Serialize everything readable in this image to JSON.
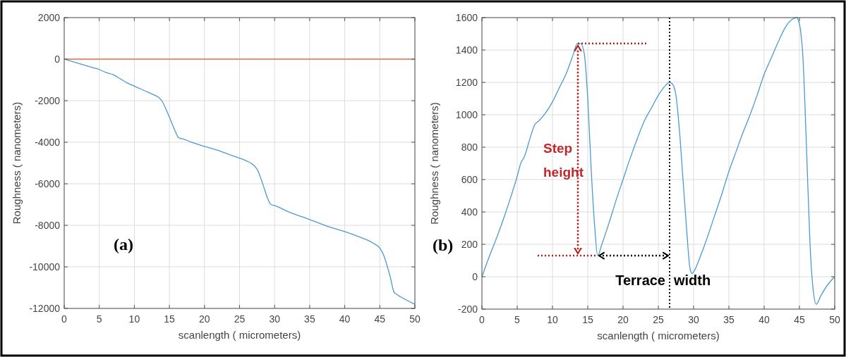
{
  "chart_data": [
    {
      "type": "line",
      "xlabel": "scanlength ( micrometers)",
      "ylabel": "Roughness ( nanometers)",
      "xlim": [
        0,
        50
      ],
      "xticks": [
        0,
        5,
        10,
        15,
        20,
        25,
        30,
        35,
        40,
        45,
        50
      ],
      "ylim": [
        -12000,
        2000
      ],
      "yticks": [
        -12000,
        -10000,
        -8000,
        -6000,
        -4000,
        -2000,
        0,
        2000
      ],
      "grid": true,
      "annotations": [
        "(a)"
      ],
      "ref_lines": [
        {
          "axis": "y",
          "value": 0,
          "color": "#e8704a"
        }
      ],
      "series": [
        {
          "color": "#4d9ad0",
          "x": [
            0,
            2,
            4,
            5,
            6,
            7,
            8,
            9,
            10,
            11,
            12,
            13,
            13.5,
            14,
            14.5,
            15,
            15.5,
            16,
            16.3,
            17,
            18,
            20,
            22,
            24,
            26,
            27,
            27.5,
            28,
            28.5,
            29,
            29.5,
            30,
            32,
            34,
            36,
            38,
            40,
            42,
            44,
            45,
            45.5,
            46,
            46.5,
            47,
            47.3,
            48,
            50
          ],
          "values": [
            0,
            -200,
            -400,
            -500,
            -650,
            -750,
            -950,
            -1150,
            -1300,
            -1450,
            -1600,
            -1750,
            -1850,
            -2050,
            -2400,
            -2800,
            -3200,
            -3600,
            -3780,
            -3850,
            -3980,
            -4200,
            -4400,
            -4650,
            -4900,
            -5100,
            -5300,
            -5700,
            -6200,
            -6700,
            -7000,
            -7050,
            -7350,
            -7600,
            -7850,
            -8100,
            -8300,
            -8550,
            -8850,
            -9100,
            -9400,
            -9900,
            -10500,
            -11200,
            -11300,
            -11450,
            -11800
          ]
        }
      ]
    },
    {
      "type": "line",
      "xlabel": "scanlength ( micrometers)",
      "ylabel": "Roughness ( nanometers)",
      "xlim": [
        0,
        50
      ],
      "xticks": [
        0,
        5,
        10,
        15,
        20,
        25,
        30,
        35,
        40,
        45,
        50
      ],
      "ylim": [
        -200,
        1600
      ],
      "yticks": [
        -200,
        0,
        200,
        400,
        600,
        800,
        1000,
        1200,
        1400,
        1600
      ],
      "grid": true,
      "annotations": [
        "(b)",
        {
          "text": "Step height",
          "x": 13.5,
          "y": 790
        },
        {
          "text": "Terrace width",
          "x": 26.6,
          "y": -20
        }
      ],
      "ref_lines": [
        {
          "axis": "x",
          "value": 26.6,
          "color": "#000000",
          "line_style": "dotted"
        }
      ],
      "series": [
        {
          "color": "#4d9ad0",
          "x": [
            0,
            1,
            2,
            3,
            4,
            5,
            5.5,
            6,
            7,
            7.5,
            8,
            9,
            10,
            11,
            12,
            13,
            13.5,
            14,
            14.5,
            15,
            15.5,
            16,
            16.4,
            17,
            18,
            19,
            20,
            21,
            22,
            23,
            24,
            25,
            26,
            26.6,
            27,
            27.5,
            28,
            28.5,
            29,
            29.5,
            29.8,
            30,
            31,
            32,
            33,
            34,
            35,
            36,
            37,
            38,
            39,
            40,
            41,
            42,
            43,
            44,
            44.6,
            45,
            45.5,
            46,
            46.5,
            47,
            47.4,
            48,
            49,
            50
          ],
          "values": [
            0,
            120,
            230,
            350,
            480,
            620,
            700,
            740,
            880,
            940,
            960,
            1010,
            1080,
            1170,
            1260,
            1380,
            1440,
            1440,
            1380,
            1100,
            650,
            300,
            130,
            200,
            330,
            470,
            600,
            730,
            850,
            960,
            1040,
            1120,
            1180,
            1200,
            1190,
            1120,
            900,
            600,
            300,
            50,
            20,
            30,
            130,
            250,
            380,
            510,
            650,
            770,
            890,
            1000,
            1120,
            1250,
            1350,
            1450,
            1540,
            1590,
            1600,
            1560,
            1350,
            800,
            200,
            -100,
            -170,
            -120,
            -50,
            0
          ]
        }
      ]
    }
  ]
}
